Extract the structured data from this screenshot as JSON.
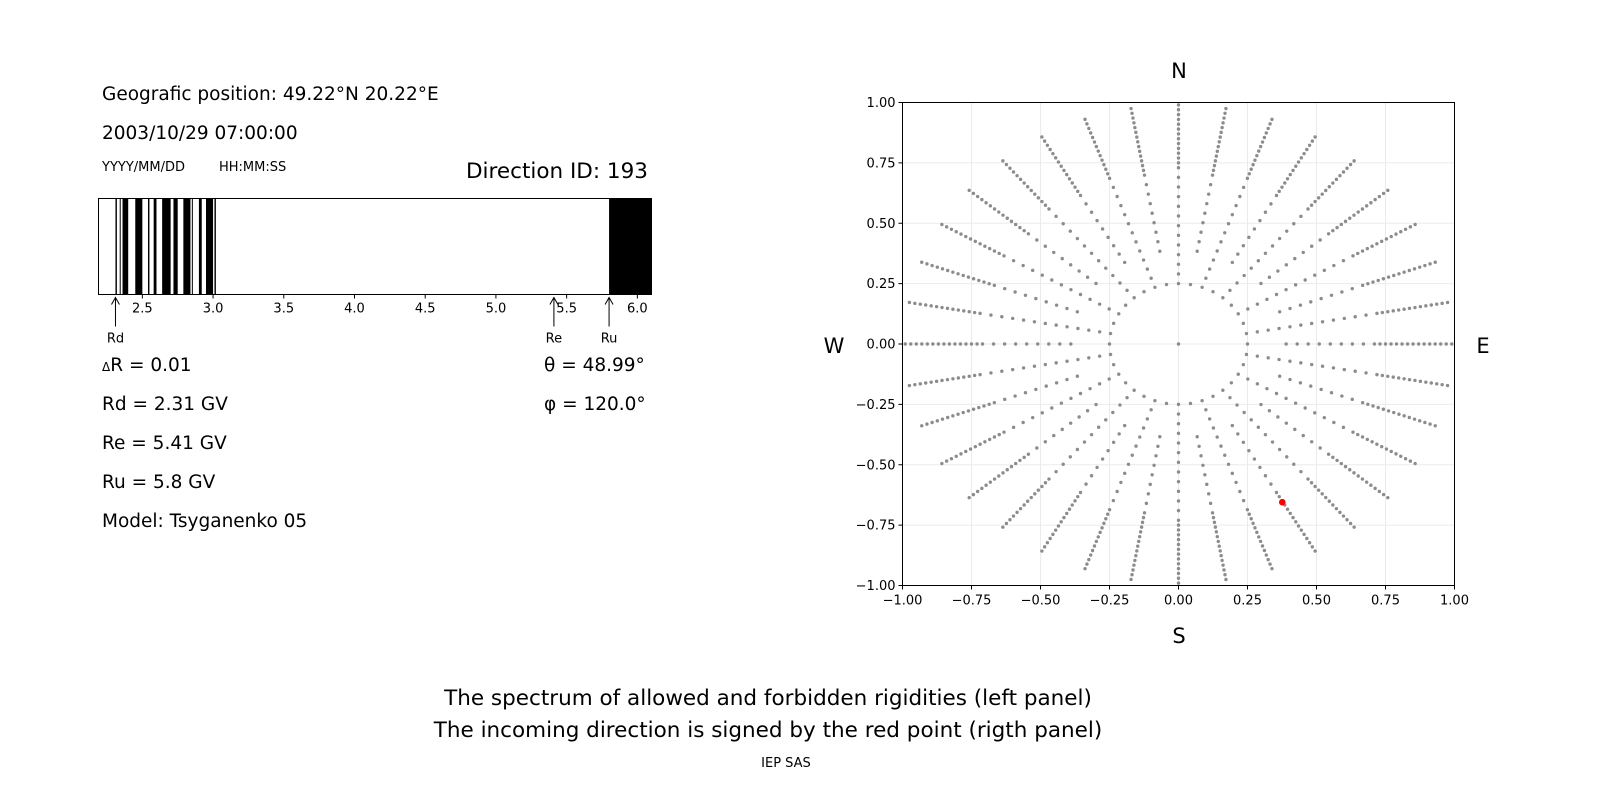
{
  "info": {
    "position": "Geografic position: 49.22°N 20.22°E",
    "datetime": "2003/10/29 07:00:00",
    "date_format": "YYYY/MM/DD",
    "time_format": "HH:MM:SS",
    "direction_id": "Direction ID: 193"
  },
  "markers": {
    "rd": "Rd",
    "re": "Re",
    "ru": "Ru"
  },
  "params": {
    "delta_r": "R = 0.01",
    "delta_symbol": "Δ",
    "rd": "Rd = 2.31 GV",
    "re": "Re = 5.41 GV",
    "ru": "Ru = 5.8 GV",
    "model": "Model: Tsyganenko 05",
    "theta": "θ = 48.99°",
    "phi": "φ = 120.0°"
  },
  "compass": {
    "n": "N",
    "s": "S",
    "w": "W",
    "e": "E"
  },
  "footer": {
    "line1": "The spectrum of allowed and forbidden rigidities (left panel)",
    "line2": "The incoming direction is signed by the red point (rigth panel)",
    "credit": "IEP SAS"
  },
  "colors": {
    "forbidden": "#000000",
    "allowed": "#ffffff",
    "grid_points": "#8c8c8c",
    "direction_point": "#ff0000"
  },
  "chart_data": [
    {
      "type": "bar",
      "name": "rigidity-spectrum",
      "xlim": [
        2.19,
        6.1
      ],
      "xticks": [
        2.5,
        3.0,
        3.5,
        4.0,
        4.5,
        5.0,
        5.5,
        6.0
      ],
      "xtick_labels": [
        "2.5",
        "3.0",
        "3.5",
        "4.0",
        "4.5",
        "5.0",
        "5.5",
        "6.0"
      ],
      "markers": {
        "Rd": 2.31,
        "Re": 5.41,
        "Ru": 5.8
      },
      "forbidden_bands": [
        [
          2.31,
          2.32
        ],
        [
          2.34,
          2.345
        ],
        [
          2.36,
          2.4
        ],
        [
          2.45,
          2.5
        ],
        [
          2.54,
          2.55
        ],
        [
          2.58,
          2.6
        ],
        [
          2.64,
          2.7
        ],
        [
          2.72,
          2.75
        ],
        [
          2.79,
          2.84
        ],
        [
          2.85,
          2.855
        ],
        [
          2.9,
          2.92
        ],
        [
          2.95,
          3.0
        ],
        [
          3.01,
          3.02
        ],
        [
          5.8,
          6.1
        ]
      ]
    },
    {
      "type": "scatter",
      "name": "incoming-directions",
      "xlim": [
        -1.0,
        1.0
      ],
      "ylim": [
        -1.0,
        1.0
      ],
      "xticks": [
        -1.0,
        -0.75,
        -0.5,
        -0.25,
        0.0,
        0.25,
        0.5,
        0.75,
        1.0
      ],
      "yticks": [
        -1.0,
        -0.75,
        -0.5,
        -0.25,
        0.0,
        0.25,
        0.5,
        0.75,
        1.0
      ],
      "xtick_labels": [
        "−1.00",
        "−0.75",
        "−0.50",
        "−0.25",
        "0.00",
        "0.25",
        "0.50",
        "0.75",
        "1.00"
      ],
      "ytick_labels": [
        "−1.00",
        "−0.75",
        "−0.50",
        "−0.25",
        "0.00",
        "0.25",
        "0.50",
        "0.75",
        "1.00"
      ],
      "grid": true,
      "pattern": {
        "zenith_point": [
          0.0,
          0.0
        ],
        "inner_ring_radius": 0.25,
        "inner_ring_azimuth_step_deg": 10,
        "ray_azimuth_step_deg": 20,
        "ray_radius_start": 0.25,
        "ray_radius_end": 1.0,
        "ray_offsets_deg": [
          0,
          10
        ],
        "ray_radius_step": 0.04
      },
      "highlight": {
        "x": 0.376,
        "y": -0.655
      }
    }
  ]
}
